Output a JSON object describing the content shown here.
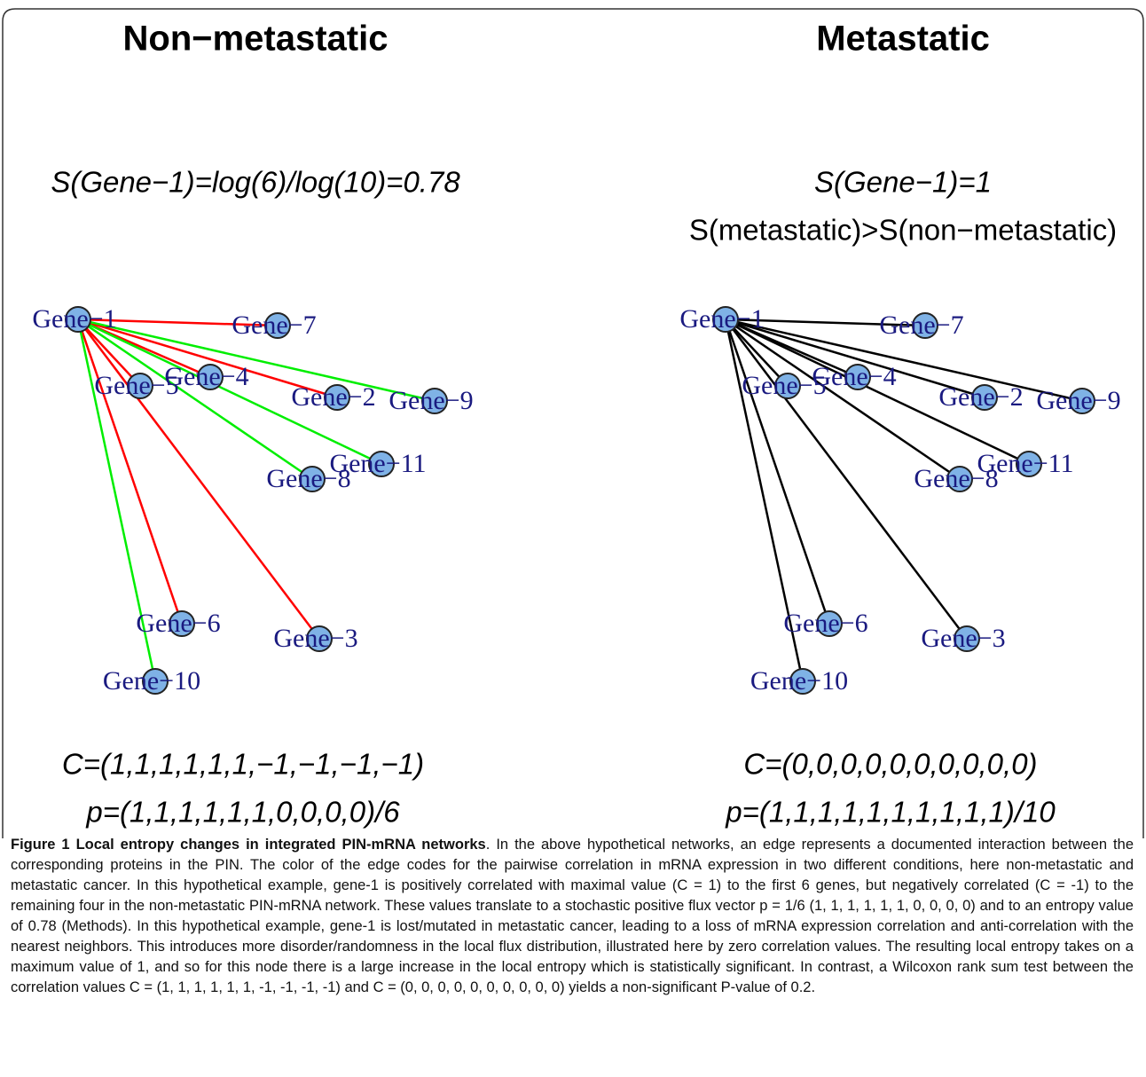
{
  "panels": [
    {
      "title": "Non−metastatic",
      "entropy": "S(Gene−1)=log(6)/log(10)=0.78",
      "nodes": [
        "Gene−1",
        "Gene−2",
        "Gene−3",
        "Gene−4",
        "Gene−5",
        "Gene−6",
        "Gene−7",
        "Gene−8",
        "Gene−9",
        "Gene−10",
        "Gene−11"
      ],
      "c_vector": "C=(1,1,1,1,1,1,−1,−1,−1,−1)",
      "p_vector": "p=(1,1,1,1,1,1,0,0,0,0)/6"
    },
    {
      "title": "Metastatic",
      "entropy": "S(Gene−1)=1",
      "comparison": "S(metastatic)>S(non−metastatic)",
      "nodes": [
        "Gene−1",
        "Gene−2",
        "Gene−3",
        "Gene−4",
        "Gene−5",
        "Gene−6",
        "Gene−7",
        "Gene−8",
        "Gene−9",
        "Gene−10",
        "Gene−11"
      ],
      "c_vector": "C=(0,0,0,0,0,0,0,0,0,0)",
      "p_vector": "p=(1,1,1,1,1,1,1,1,1,1)/10"
    }
  ],
  "caption": {
    "label": "Figure 1 Local entropy changes in integrated PIN-mRNA networks",
    "text": ". In the above hypothetical networks, an edge represents a documented interaction between the corresponding proteins in the PIN. The color of the edge codes for the pairwise correlation in mRNA expression in two different conditions, here non-metastatic and metastatic cancer. In this hypothetical example, gene-1 is positively correlated with maximal value (C = 1) to the first 6 genes, but negatively correlated (C = -1) to the remaining four in the non-metastatic PIN-mRNA network. These values translate to a stochastic positive flux vector p = 1/6 (1, 1, 1, 1, 1, 1, 0, 0, 0, 0) and to an entropy value of 0.78 (Methods). In this hypothetical example, gene-1 is lost/mutated in metastatic cancer, leading to a loss of mRNA expression correlation and anti-correlation with the nearest neighbors. This introduces more disorder/randomness in the local flux distribution, illustrated here by zero correlation values. The resulting local entropy takes on a maximum value of 1, and so for this node there is a large increase in the local entropy which is statistically significant. In contrast, a Wilcoxon rank sum test between the correlation values C = (1, 1, 1, 1, 1, 1, -1, -1, -1, -1) and C = (0, 0, 0, 0, 0, 0, 0, 0, 0, 0) yields a non-significant P-value of 0.2."
  }
}
